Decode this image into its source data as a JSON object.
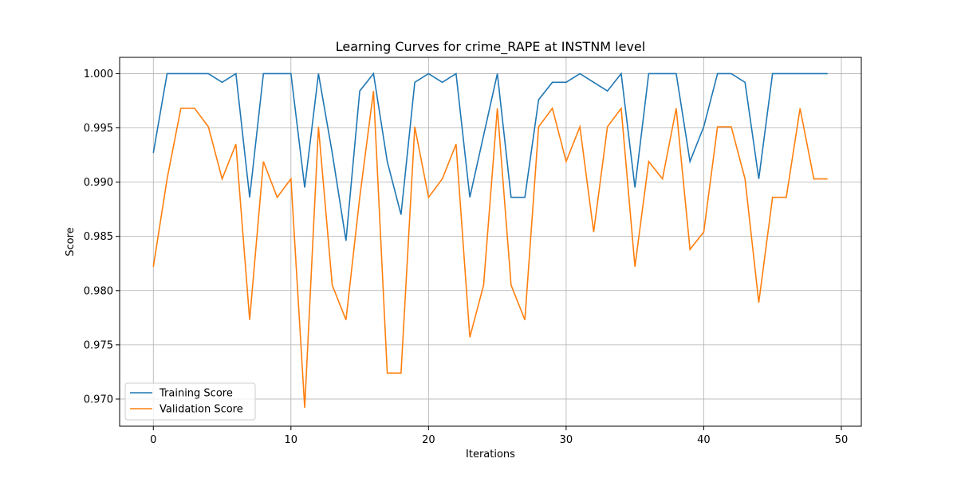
{
  "chart_data": {
    "type": "line",
    "title": "Learning Curves for crime_RAPE at INSTNM level",
    "xlabel": "Iterations",
    "ylabel": "Score",
    "xlim": [
      -2.45,
      51.45
    ],
    "ylim": [
      0.9675,
      1.0015
    ],
    "xticks": [
      0,
      10,
      20,
      30,
      40,
      50
    ],
    "yticks": [
      0.97,
      0.975,
      0.98,
      0.985,
      0.99,
      0.995,
      1.0
    ],
    "grid": true,
    "legend": "bottom-left",
    "x": [
      0,
      1,
      2,
      3,
      4,
      5,
      6,
      7,
      8,
      9,
      10,
      11,
      12,
      13,
      14,
      15,
      16,
      17,
      18,
      19,
      20,
      21,
      22,
      23,
      24,
      25,
      26,
      27,
      28,
      29,
      30,
      31,
      32,
      33,
      34,
      35,
      36,
      37,
      38,
      39,
      40,
      41,
      42,
      43,
      44,
      45,
      46,
      47,
      48,
      49
    ],
    "series": [
      {
        "name": "Training Score",
        "color": "#1f77b4",
        "values": [
          0.9927,
          1.0,
          1.0,
          1.0,
          1.0,
          0.9992,
          1.0,
          0.9886,
          1.0,
          1.0,
          1.0,
          0.9895,
          1.0,
          0.9927,
          0.9846,
          0.9984,
          1.0,
          0.9919,
          0.987,
          0.9992,
          1.0,
          0.9992,
          1.0,
          0.9886,
          0.9943,
          1.0,
          0.9886,
          0.9886,
          0.9976,
          0.9992,
          0.9992,
          1.0,
          0.9992,
          0.9984,
          1.0,
          0.9895,
          1.0,
          1.0,
          1.0,
          0.9919,
          0.9951,
          1.0,
          1.0,
          0.9992,
          0.9903,
          1.0,
          1.0,
          1.0,
          1.0,
          1.0
        ]
      },
      {
        "name": "Validation Score",
        "color": "#ff7f0e",
        "values": [
          0.9822,
          0.9903,
          0.9968,
          0.9968,
          0.9951,
          0.9903,
          0.9935,
          0.9773,
          0.9919,
          0.9886,
          0.9903,
          0.9692,
          0.9951,
          0.9805,
          0.9773,
          0.9886,
          0.9984,
          0.9724,
          0.9724,
          0.9951,
          0.9886,
          0.9903,
          0.9935,
          0.9757,
          0.9805,
          0.9968,
          0.9805,
          0.9773,
          0.9951,
          0.9968,
          0.9919,
          0.9951,
          0.9854,
          0.9951,
          0.9968,
          0.9822,
          0.9919,
          0.9903,
          0.9968,
          0.9838,
          0.9854,
          0.9951,
          0.9951,
          0.9903,
          0.9789,
          0.9886,
          0.9886,
          0.9968,
          0.9903,
          0.9903
        ]
      }
    ]
  }
}
